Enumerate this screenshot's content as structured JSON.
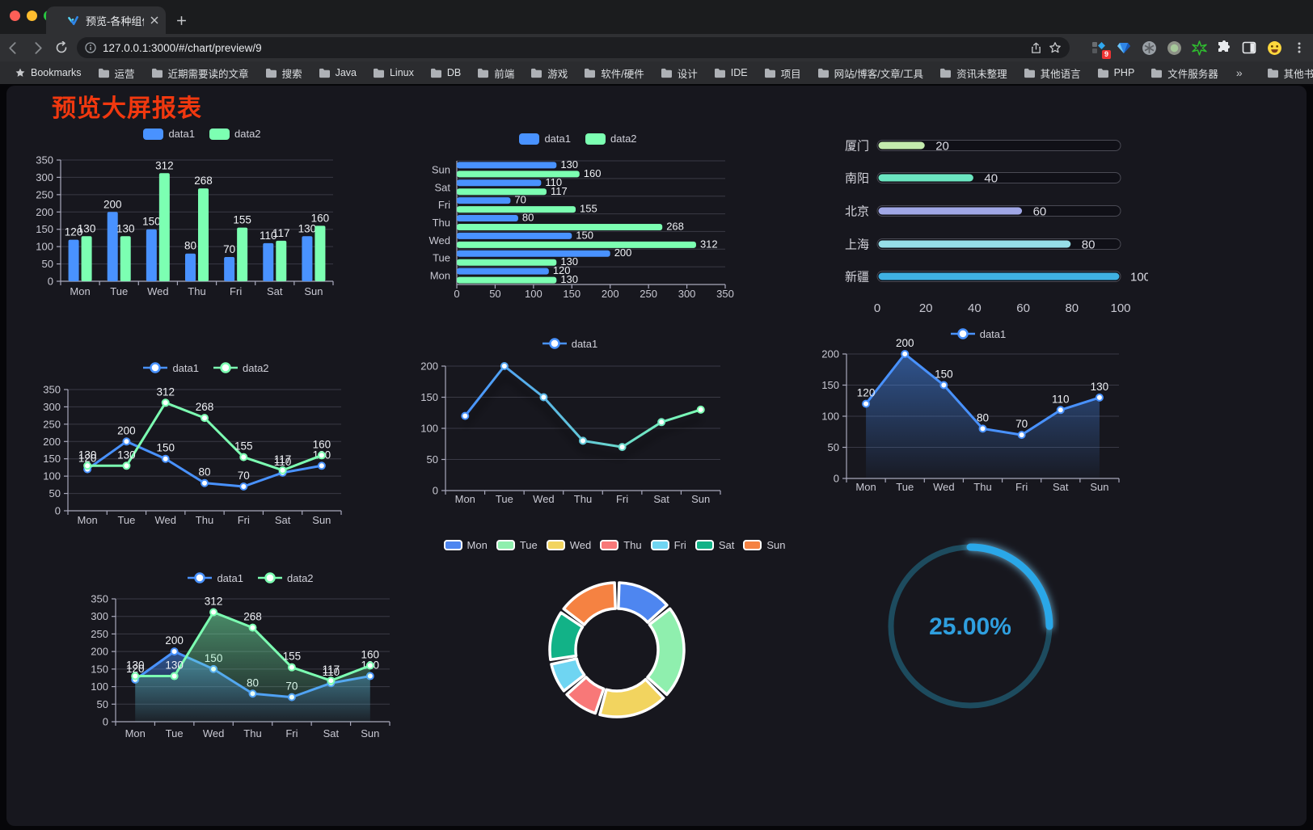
{
  "browser": {
    "traffic_lights": [
      "#ff5f57",
      "#febc2e",
      "#28c840"
    ],
    "tab_title": "预览-各种组件",
    "url": "127.0.0.1:3000/#/chart/preview/9",
    "bookmarks_label": "Bookmarks",
    "bookmarks": [
      "运营",
      "近期需要读的文章",
      "搜索",
      "Java",
      "Linux",
      "DB",
      "前端",
      "游戏",
      "软件/硬件",
      "设计",
      "IDE",
      "项目",
      "网站/博客/文章/工具",
      "资讯未整理",
      "其他语言",
      "PHP",
      "文件服务器"
    ],
    "overflow_chevron": "»",
    "other_bookmarks_label": "其他书签",
    "extension_badge": "9",
    "extensions": [
      "tab-manager-icon",
      "gem-icon",
      "snowflake-circle-icon",
      "dot-circle-icon",
      "green-star-icon",
      "puzzle-extensions-icon",
      "side-panel-icon",
      "emoji-face-icon"
    ]
  },
  "page": {
    "title": "预览大屏报表",
    "title_color": "#F1380F",
    "background": "#17171E"
  },
  "chart_data": [
    {
      "id": "bar-vertical",
      "type": "bar",
      "categories": [
        "Mon",
        "Tue",
        "Wed",
        "Thu",
        "Fri",
        "Sat",
        "Sun"
      ],
      "series": [
        {
          "name": "data1",
          "color": "#4992ff",
          "values": [
            120,
            200,
            150,
            80,
            70,
            110,
            130
          ]
        },
        {
          "name": "data2",
          "color": "#7cffb2",
          "values": [
            130,
            130,
            312,
            268,
            155,
            117,
            160
          ]
        }
      ],
      "ylim": [
        0,
        350
      ],
      "ytick_step": 50,
      "show_labels": true,
      "grid": true,
      "legend_position": "top"
    },
    {
      "id": "bar-horizontal",
      "type": "hbar",
      "categories": [
        "Mon",
        "Tue",
        "Wed",
        "Thu",
        "Fri",
        "Sat",
        "Sun"
      ],
      "categories_top_to_bottom": [
        "Sun",
        "Sat",
        "Fri",
        "Thu",
        "Wed",
        "Tue",
        "Mon"
      ],
      "series": [
        {
          "name": "data1",
          "color": "#4992ff",
          "values": [
            120,
            200,
            150,
            80,
            70,
            110,
            130
          ]
        },
        {
          "name": "data2",
          "color": "#7cffb2",
          "values": [
            130,
            130,
            312,
            268,
            155,
            117,
            160
          ]
        }
      ],
      "xlim": [
        0,
        350
      ],
      "xtick_step": 50,
      "show_labels": true,
      "legend_position": "top"
    },
    {
      "id": "progress-bars",
      "type": "progress",
      "max": 100,
      "xticks": [
        0,
        20,
        40,
        60,
        80,
        100
      ],
      "items": [
        {
          "label": "厦门",
          "value": 20,
          "color": "#c4ebad"
        },
        {
          "label": "南阳",
          "value": 40,
          "color": "#6be6c1"
        },
        {
          "label": "北京",
          "value": 60,
          "color": "#a0a7e6"
        },
        {
          "label": "上海",
          "value": 80,
          "color": "#96dee8"
        },
        {
          "label": "新疆",
          "value": 100,
          "color": "#3fb1e3"
        }
      ]
    },
    {
      "id": "line-two",
      "type": "line",
      "categories": [
        "Mon",
        "Tue",
        "Wed",
        "Thu",
        "Fri",
        "Sat",
        "Sun"
      ],
      "series": [
        {
          "name": "data1",
          "color": "#4992ff",
          "values": [
            120,
            200,
            150,
            80,
            70,
            110,
            130
          ]
        },
        {
          "name": "data2",
          "color": "#7cffb2",
          "values": [
            130,
            130,
            312,
            268,
            155,
            117,
            160
          ]
        }
      ],
      "ylim": [
        0,
        350
      ],
      "ytick_step": 50,
      "show_labels": true,
      "legend_position": "top"
    },
    {
      "id": "line-gradient",
      "type": "line",
      "categories": [
        "Mon",
        "Tue",
        "Wed",
        "Thu",
        "Fri",
        "Sat",
        "Sun"
      ],
      "series": [
        {
          "name": "data1",
          "gradient": [
            "#4992ff",
            "#7cffb2"
          ],
          "values": [
            120,
            200,
            150,
            80,
            70,
            110,
            130
          ],
          "shadow": true
        }
      ],
      "ylim": [
        0,
        200
      ],
      "ytick_step": 50,
      "show_labels": false,
      "legend_position": "top"
    },
    {
      "id": "line-area",
      "type": "line",
      "categories": [
        "Mon",
        "Tue",
        "Wed",
        "Thu",
        "Fri",
        "Sat",
        "Sun"
      ],
      "series": [
        {
          "name": "data1",
          "color": "#4992ff",
          "values": [
            120,
            200,
            150,
            80,
            70,
            110,
            130
          ],
          "area": true
        }
      ],
      "ylim": [
        0,
        200
      ],
      "ytick_step": 50,
      "show_labels": true,
      "legend_position": "top"
    },
    {
      "id": "line-two-area",
      "type": "line",
      "categories": [
        "Mon",
        "Tue",
        "Wed",
        "Thu",
        "Fri",
        "Sat",
        "Sun"
      ],
      "series": [
        {
          "name": "data1",
          "color": "#4992ff",
          "values": [
            120,
            200,
            150,
            80,
            70,
            110,
            130
          ],
          "area": true
        },
        {
          "name": "data2",
          "color": "#7cffb2",
          "values": [
            130,
            130,
            312,
            268,
            155,
            117,
            160
          ],
          "area": true
        }
      ],
      "ylim": [
        0,
        350
      ],
      "ytick_step": 50,
      "show_labels": true,
      "legend_position": "top"
    },
    {
      "id": "donut",
      "type": "donut",
      "legend_position": "top",
      "items": [
        {
          "label": "Mon",
          "value": 120,
          "color": "#4e86f0"
        },
        {
          "label": "Tue",
          "value": 200,
          "color": "#8fefae"
        },
        {
          "label": "Wed",
          "value": 150,
          "color": "#f2d45f"
        },
        {
          "label": "Thu",
          "value": 80,
          "color": "#f87878"
        },
        {
          "label": "Fri",
          "value": 70,
          "color": "#6fd5f2"
        },
        {
          "label": "Sat",
          "value": 110,
          "color": "#12b287"
        },
        {
          "label": "Sun",
          "value": 130,
          "color": "#f58242"
        }
      ]
    },
    {
      "id": "gauge",
      "type": "gauge",
      "value": 25,
      "display": "25.00%",
      "color": "#2aa7e8",
      "track_color": "#1d4b5e",
      "text_color": "#2f9fdf"
    }
  ]
}
